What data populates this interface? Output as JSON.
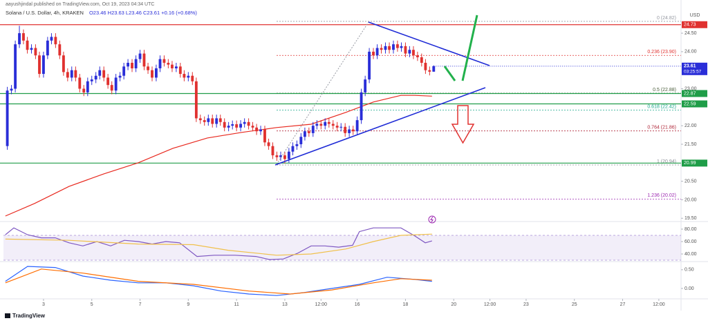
{
  "header": "aayushjindal published on TradingView.com, Oct 19, 2023 04:34 UTC",
  "footer": "TradingView",
  "chart_data": [
    {
      "type": "candlestick",
      "title": "Solana / U.S. Dollar, 4h, KRAKEN",
      "ohlc_label": "O23.46 H23.63 L23.46 C23.61 +0.16 (+0.68%)",
      "y_axis_label": "USD",
      "up_color": "#2a2ed8",
      "down_color": "#e0312f",
      "x": [
        1.5,
        1.67,
        1.83,
        2,
        2.17,
        2.33,
        2.5,
        2.67,
        2.83,
        3,
        3.17,
        3.33,
        3.5,
        3.67,
        3.83,
        4,
        4.17,
        4.33,
        4.5,
        4.67,
        4.83,
        5,
        5.17,
        5.33,
        5.5,
        5.67,
        5.83,
        6,
        6.17,
        6.33,
        6.5,
        6.67,
        6.83,
        7,
        7.17,
        7.33,
        7.5,
        7.67,
        7.83,
        8,
        8.17,
        8.33,
        8.5,
        8.67,
        8.83,
        9,
        9.17,
        9.33,
        9.5,
        9.67,
        9.83,
        10,
        10.17,
        10.33,
        10.5,
        10.67,
        10.83,
        11,
        11.17,
        11.33,
        11.5,
        11.67,
        11.83,
        12,
        12.17,
        12.33,
        12.5,
        12.67,
        12.83,
        13,
        13.17,
        13.33,
        13.5,
        13.67,
        13.83,
        14,
        14.17,
        14.33,
        14.5,
        14.67,
        14.83,
        15,
        15.17,
        15.33,
        15.5,
        15.67,
        15.83,
        16,
        16.17,
        16.33,
        16.5,
        16.67,
        16.83,
        17,
        17.17,
        17.33,
        17.5,
        17.67,
        17.83,
        18,
        18.17,
        18.33,
        18.5,
        18.67,
        18.83,
        19,
        19.17
      ],
      "open": [
        21.45,
        22.95,
        23.0,
        24.2,
        24.5,
        24.3,
        24.05,
        24.1,
        23.9,
        23.4,
        23.9,
        24.3,
        24.4,
        24.2,
        23.9,
        23.45,
        23.3,
        23.5,
        23.3,
        23.0,
        22.9,
        23.2,
        23.25,
        23.35,
        23.5,
        23.3,
        23.1,
        22.95,
        23.3,
        23.35,
        23.6,
        23.7,
        23.55,
        23.8,
        23.95,
        23.6,
        23.5,
        23.3,
        23.55,
        23.8,
        23.7,
        23.65,
        23.55,
        23.6,
        23.4,
        23.3,
        23.35,
        23.2,
        22.2,
        22.15,
        22.1,
        22.2,
        22.05,
        22.2,
        22.1,
        21.95,
        22.0,
        22.04,
        21.95,
        22.05,
        22.1,
        22.0,
        21.95,
        21.85,
        21.9,
        21.55,
        21.45,
        21.2,
        21.15,
        21.2,
        21.1,
        21.3,
        21.45,
        21.5,
        21.7,
        21.85,
        21.8,
        22.0,
        22.05,
        22.0,
        22.1,
        22.05,
        22.0,
        21.95,
        21.97,
        21.8,
        21.9,
        21.85,
        22.15,
        22.9,
        23.25,
        24.0,
        23.9,
        24.1,
        24.05,
        24.15,
        24.05,
        24.2,
        24.1,
        24.15,
        23.95,
        24.05,
        23.9,
        23.85,
        23.7,
        23.5,
        23.46
      ],
      "high": [
        23.05,
        23.1,
        24.3,
        24.7,
        24.6,
        24.4,
        24.2,
        24.2,
        24.0,
        24.0,
        24.4,
        24.5,
        24.5,
        24.3,
        24.0,
        23.55,
        23.6,
        23.6,
        23.4,
        23.1,
        23.3,
        23.35,
        23.45,
        23.6,
        23.6,
        23.4,
        23.2,
        23.4,
        23.45,
        23.7,
        23.8,
        23.8,
        23.9,
        24.05,
        24.05,
        23.7,
        23.6,
        23.65,
        23.9,
        23.9,
        23.8,
        23.75,
        23.7,
        23.7,
        23.5,
        23.45,
        23.45,
        23.3,
        22.3,
        22.25,
        22.3,
        22.3,
        22.3,
        22.3,
        22.2,
        22.1,
        22.14,
        22.14,
        22.15,
        22.2,
        22.2,
        22.1,
        22.05,
        22.0,
        22.0,
        21.65,
        21.55,
        21.3,
        21.3,
        21.3,
        21.4,
        21.55,
        21.6,
        21.8,
        21.95,
        21.95,
        22.1,
        22.15,
        22.15,
        22.2,
        22.2,
        22.15,
        22.1,
        22.07,
        22.07,
        22.0,
        22.0,
        22.25,
        23.0,
        23.35,
        24.1,
        24.1,
        24.2,
        24.2,
        24.25,
        24.25,
        24.3,
        24.3,
        24.25,
        24.25,
        24.15,
        24.15,
        24.0,
        23.95,
        23.8,
        23.6,
        23.63
      ],
      "low": [
        21.35,
        22.85,
        22.9,
        24.1,
        24.2,
        23.95,
        23.95,
        23.8,
        23.3,
        23.3,
        23.8,
        24.2,
        24.1,
        23.8,
        23.35,
        23.2,
        23.2,
        23.2,
        22.9,
        22.8,
        22.8,
        23.1,
        23.15,
        23.25,
        23.2,
        23.0,
        22.85,
        22.85,
        23.2,
        23.25,
        23.5,
        23.45,
        23.45,
        23.7,
        23.5,
        23.4,
        23.2,
        23.2,
        23.45,
        23.6,
        23.55,
        23.45,
        23.45,
        23.3,
        23.2,
        23.2,
        23.1,
        22.1,
        22.05,
        22.0,
        22.0,
        21.95,
        21.95,
        22.0,
        21.85,
        21.85,
        21.9,
        21.85,
        21.85,
        21.95,
        21.9,
        21.85,
        21.75,
        21.75,
        21.45,
        21.35,
        21.1,
        21.05,
        21.05,
        20.98,
        21.0,
        21.2,
        21.35,
        21.4,
        21.6,
        21.7,
        21.7,
        21.9,
        21.9,
        21.9,
        21.95,
        21.9,
        21.85,
        21.85,
        21.7,
        21.7,
        21.75,
        21.75,
        22.05,
        22.8,
        23.15,
        23.8,
        23.8,
        23.95,
        23.95,
        23.95,
        23.95,
        24.0,
        24.0,
        23.85,
        23.85,
        23.8,
        23.75,
        23.6,
        23.4,
        23.36,
        23.46
      ],
      "close": [
        22.95,
        23.0,
        24.2,
        24.5,
        24.3,
        24.05,
        24.1,
        23.9,
        23.4,
        23.9,
        24.3,
        24.4,
        24.2,
        23.9,
        23.45,
        23.3,
        23.5,
        23.3,
        23.0,
        22.9,
        23.2,
        23.25,
        23.35,
        23.5,
        23.3,
        23.1,
        22.95,
        23.3,
        23.35,
        23.6,
        23.7,
        23.55,
        23.8,
        23.95,
        23.6,
        23.5,
        23.3,
        23.55,
        23.8,
        23.7,
        23.65,
        23.55,
        23.6,
        23.4,
        23.3,
        23.35,
        23.2,
        22.2,
        22.15,
        22.1,
        22.2,
        22.05,
        22.2,
        22.1,
        21.95,
        22.0,
        22.04,
        21.95,
        22.05,
        22.1,
        22.0,
        21.95,
        21.85,
        21.9,
        21.55,
        21.45,
        21.2,
        21.15,
        21.2,
        21.1,
        21.3,
        21.45,
        21.5,
        21.7,
        21.85,
        21.8,
        22.0,
        22.05,
        22.0,
        22.1,
        22.05,
        22.0,
        21.95,
        21.97,
        21.8,
        21.9,
        21.85,
        22.15,
        22.9,
        23.25,
        24.0,
        23.9,
        24.1,
        24.05,
        24.15,
        24.05,
        24.2,
        24.1,
        24.15,
        23.95,
        24.05,
        23.9,
        23.85,
        23.7,
        23.5,
        23.46,
        23.61
      ],
      "overlays": [
        {
          "color": "#e8281e",
          "x": [
            1.42,
            2.63,
            4.06,
            5.5,
            6.93,
            8.36,
            9.79,
            11.22,
            12.66,
            14.09,
            15.52,
            16.1,
            16.67,
            17.81,
            18.39,
            19.1
          ],
          "values": [
            19.56,
            19.9,
            20.36,
            20.7,
            21.0,
            21.39,
            21.67,
            21.82,
            21.95,
            22.04,
            22.36,
            22.5,
            22.64,
            22.82,
            22.82,
            22.8
          ]
        }
      ],
      "lines": [
        {
          "value": 24.73,
          "color": "#e0312f"
        },
        {
          "value": 22.87,
          "color": "#1f9d48"
        },
        {
          "value": 22.59,
          "color": "#1f9d48"
        },
        {
          "value": 20.99,
          "color": "#1f9d48"
        }
      ],
      "last_price": {
        "value": 23.61,
        "time_left": "03:25:57",
        "color": "#2a2ed8"
      },
      "fib_levels": [
        {
          "value": 24.82,
          "label": "0 (24.82)",
          "color": "#9598a1"
        },
        {
          "value": 23.9,
          "label": "0.236 (23.90)",
          "color": "#e0312f"
        },
        {
          "value": 22.88,
          "label": "0.5 (22.88)",
          "color": "#4b5e3c"
        },
        {
          "value": 22.42,
          "label": "0.618 (22.42)",
          "color": "#17a589"
        },
        {
          "value": 21.86,
          "label": "0.764 (21.86)",
          "color": "#b0283a"
        },
        {
          "value": 20.94,
          "label": "1 (20.94)",
          "color": "#8a8d96"
        },
        {
          "value": 20.02,
          "label": "1.236 (20.02)",
          "color": "#9c27b0"
        }
      ],
      "xlim": [
        1.34,
        29.42
      ],
      "xticks": [
        3,
        5,
        7,
        9,
        11,
        13,
        {
          "value": 14.5,
          "label": "12:00"
        },
        16,
        18,
        20,
        {
          "value": 21.5,
          "label": "12:00"
        },
        23,
        25,
        27,
        {
          "value": 28.5,
          "label": "12:00"
        }
      ],
      "ylim": [
        19.43,
        25.21
      ],
      "yticks": [
        {
          "value": 24.5,
          "label": "24.50"
        },
        {
          "value": 24,
          "label": "24.00"
        },
        {
          "value": 23,
          "label": "23.00"
        },
        {
          "value": 22,
          "label": "22.00"
        },
        {
          "value": 21.5,
          "label": "21.50"
        },
        {
          "value": 20.5,
          "label": "20.50"
        },
        {
          "value": 20,
          "label": "20.00"
        },
        {
          "value": 19.5,
          "label": "19.50"
        }
      ]
    },
    {
      "type": "line",
      "band": [
        30,
        70
      ],
      "band_color": "#7e57c2",
      "series": [
        {
          "color": "#7e57c2",
          "x": [
            1.42,
            1.77,
            2.34,
            2.91,
            3.49,
            4.06,
            4.63,
            5.21,
            5.78,
            6.35,
            6.93,
            7.5,
            8.07,
            8.64,
            9.36,
            10.08,
            10.94,
            11.8,
            12.37,
            12.94,
            13.52,
            14.09,
            14.66,
            15.23,
            15.81,
            16.09,
            16.67,
            17.24,
            17.81,
            18.39,
            18.82,
            19.1
          ],
          "values": [
            71,
            82,
            71,
            66,
            66,
            58,
            53,
            60,
            53,
            62,
            60,
            56,
            60,
            58,
            36,
            38,
            38,
            36,
            31,
            32,
            41,
            53,
            53,
            51,
            54,
            76,
            82,
            82,
            82,
            69,
            58,
            61
          ]
        },
        {
          "color": "#f0c04a",
          "x": [
            1.42,
            4.06,
            6.93,
            9.22,
            10.65,
            12.66,
            14.09,
            15.52,
            16.67,
            17.81,
            19.1
          ],
          "values": [
            64,
            62,
            56,
            55,
            46,
            38,
            40,
            48,
            60,
            70,
            72
          ]
        }
      ],
      "xlim": [
        1.34,
        29.42
      ],
      "ylim": [
        28.9,
        91.1
      ],
      "yticks": [
        {
          "value": 80,
          "label": "80.00"
        },
        {
          "value": 60,
          "label": "60.00"
        },
        {
          "value": 40,
          "label": "40.00"
        }
      ]
    },
    {
      "type": "line",
      "series": [
        {
          "color": "#2962ff",
          "x": [
            1.42,
            2.34,
            3.49,
            4.63,
            5.78,
            6.93,
            8.07,
            9.22,
            10.36,
            11.51,
            12.66,
            13.8,
            14.95,
            16.09,
            17.24,
            18.39,
            19.1
          ],
          "values": [
            0.19,
            0.59,
            0.56,
            0.33,
            0.22,
            0.15,
            0.15,
            0.07,
            -0.07,
            -0.15,
            -0.19,
            -0.11,
            0,
            0.11,
            0.3,
            0.24,
            0.19
          ]
        },
        {
          "color": "#ff6d00",
          "x": [
            1.42,
            2.91,
            4.63,
            6.93,
            9.22,
            11.51,
            13.23,
            14.95,
            16.67,
            17.81,
            19.1
          ],
          "values": [
            0.15,
            0.52,
            0.41,
            0.19,
            0.11,
            -0.07,
            -0.15,
            -0.04,
            0.15,
            0.26,
            0.22
          ]
        }
      ],
      "xlim": [
        1.34,
        29.42
      ],
      "ylim": [
        -0.26,
        0.7
      ],
      "yticks": [
        {
          "value": 0.5,
          "label": "0.50"
        },
        {
          "value": 0,
          "label": "0.00"
        }
      ]
    }
  ]
}
